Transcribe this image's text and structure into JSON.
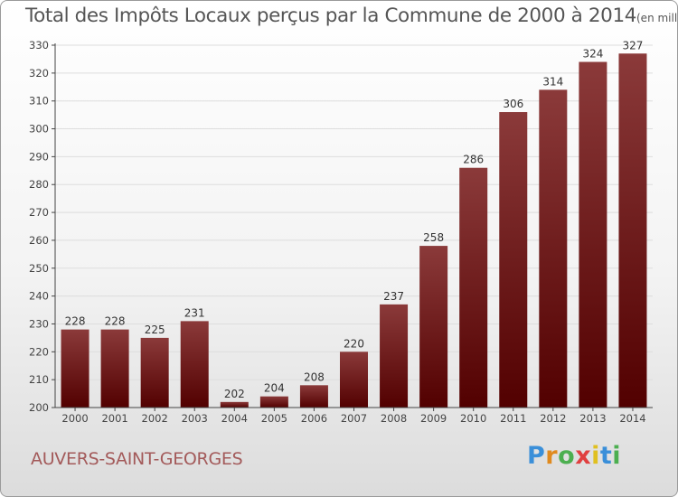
{
  "header": {
    "title": "Total des Impôts Locaux perçus par la Commune de 2000 à 2014",
    "unit": "(en milliers d'€)"
  },
  "footer": {
    "commune": "AUVERS-SAINT-GEORGES",
    "logo_text": "Proxiti",
    "logo_colors": [
      "#3a8fd9",
      "#e08a1e",
      "#4caf50",
      "#e04040",
      "#e0c020",
      "#3a8fd9",
      "#4caf50"
    ]
  },
  "colors": {
    "bar_top": "#8b3a3a",
    "bar_bottom": "#520000",
    "grid": "#dddddd",
    "axis": "#444444"
  },
  "chart_data": {
    "type": "bar",
    "title": "Total des Impôts Locaux perçus par la Commune de 2000 à 2014",
    "categories": [
      "2000",
      "2001",
      "2002",
      "2003",
      "2004",
      "2005",
      "2006",
      "2007",
      "2008",
      "2009",
      "2010",
      "2011",
      "2012",
      "2013",
      "2014"
    ],
    "values": [
      228,
      228,
      225,
      231,
      202,
      204,
      208,
      220,
      237,
      258,
      286,
      306,
      314,
      324,
      327
    ],
    "xlabel": "",
    "ylabel": "",
    "ylim": [
      200,
      330
    ],
    "yticks": [
      200,
      210,
      220,
      230,
      240,
      250,
      260,
      270,
      280,
      290,
      300,
      310,
      320,
      330
    ],
    "grid": true,
    "data_labels": true
  }
}
